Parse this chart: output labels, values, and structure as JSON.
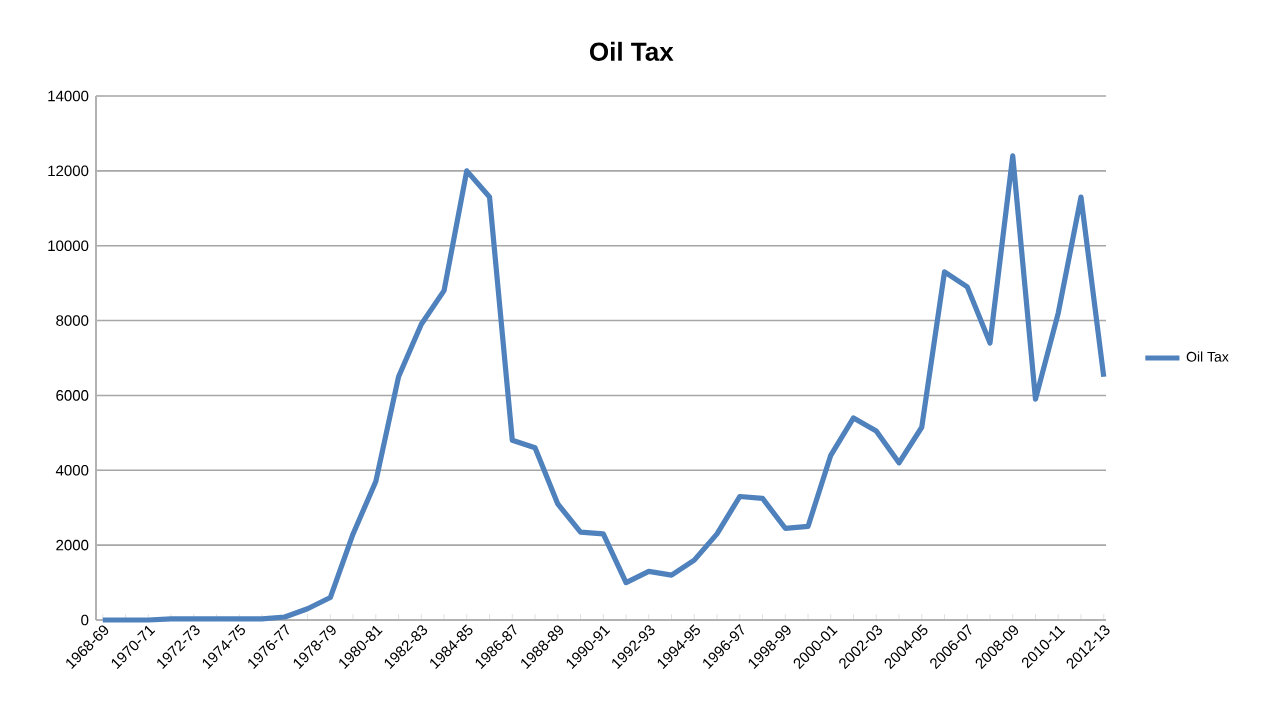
{
  "chart_data": {
    "type": "line",
    "title": "Oil Tax",
    "categories": [
      "1968-69",
      null,
      "1970-71",
      null,
      "1972-73",
      null,
      "1974-75",
      null,
      "1976-77",
      null,
      "1978-79",
      null,
      "1980-81",
      null,
      "1982-83",
      null,
      "1984-85",
      null,
      "1986-87",
      null,
      "1988-89",
      null,
      "1990-91",
      null,
      "1992-93",
      null,
      "1994-95",
      null,
      "1996-97",
      null,
      "1998-99",
      null,
      "2000-01",
      null,
      "2002-03",
      null,
      "2004-05",
      null,
      "2006-07",
      null,
      "2008-09",
      null,
      "2010-11",
      null,
      "2012-13"
    ],
    "series": [
      {
        "name": "Oil Tax",
        "color": "#4f81bd",
        "values": [
          0,
          0,
          0,
          30,
          30,
          30,
          30,
          30,
          80,
          300,
          600,
          2300,
          3700,
          6500,
          7900,
          8800,
          12000,
          11300,
          4800,
          4600,
          3100,
          2350,
          2300,
          1000,
          1300,
          1200,
          1600,
          2300,
          3300,
          3250,
          2450,
          2500,
          4400,
          5400,
          5050,
          4200,
          5150,
          9300,
          8900,
          7400,
          12400,
          5900,
          8200,
          11300,
          6500
        ]
      }
    ],
    "ylim": [
      0,
      14000
    ],
    "yticks": [
      0,
      2000,
      4000,
      6000,
      8000,
      10000,
      12000,
      14000
    ],
    "grid": "y",
    "legend": "right",
    "marker": "none",
    "line_style": "solid"
  }
}
